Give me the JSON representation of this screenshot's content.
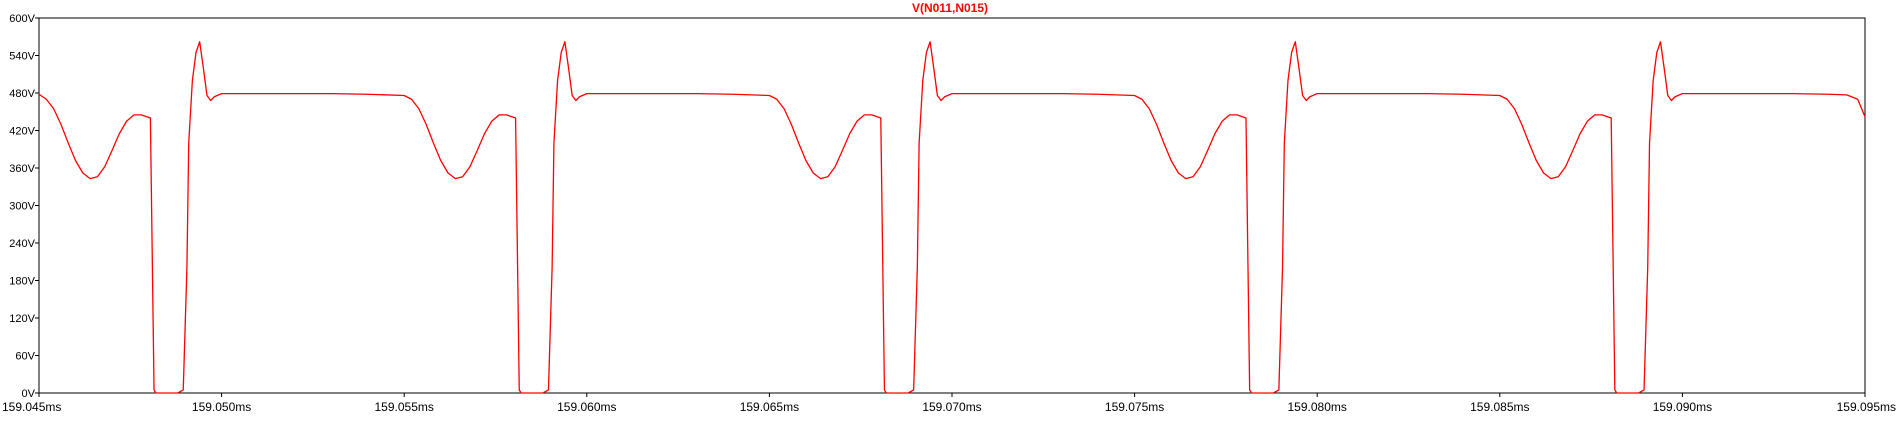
{
  "chart_data": {
    "type": "line",
    "title": "V(N011,N015)",
    "xlabel": "",
    "ylabel": "",
    "x_unit": "ms",
    "y_unit": "V",
    "xlim": [
      159.045,
      159.095
    ],
    "ylim": [
      0,
      600
    ],
    "x_ticks": [
      159.045,
      159.05,
      159.055,
      159.06,
      159.065,
      159.07,
      159.075,
      159.08,
      159.085,
      159.09,
      159.095
    ],
    "x_tick_labels": [
      "159.045ms",
      "159.050ms",
      "159.055ms",
      "159.060ms",
      "159.065ms",
      "159.070ms",
      "159.075ms",
      "159.080ms",
      "159.085ms",
      "159.090ms",
      "159.095ms"
    ],
    "y_ticks": [
      0,
      60,
      120,
      180,
      240,
      300,
      360,
      420,
      480,
      540,
      600
    ],
    "y_tick_labels": [
      "0V",
      "60V",
      "120V",
      "180V",
      "240V",
      "300V",
      "360V",
      "420V",
      "480V",
      "540V",
      "600V"
    ],
    "grid": false,
    "colors": {
      "series": "#ff0000",
      "title": "#ff0000",
      "axis": "#000000",
      "background": "#ffffff"
    },
    "series": [
      {
        "name": "V(N011,N015)",
        "x": [
          159.045,
          159.0452,
          159.0454,
          159.0456,
          159.0458,
          159.046,
          159.0462,
          159.0464,
          159.0466,
          159.0468,
          159.047,
          159.0472,
          159.0474,
          159.0476,
          159.0478,
          159.04805,
          159.04815,
          159.0482,
          159.0488,
          159.04895,
          159.04905,
          159.0491,
          159.0492,
          159.0493,
          159.0494,
          159.0495,
          159.0496,
          159.0497,
          159.0498,
          159.05,
          159.051,
          159.052,
          159.053,
          159.054,
          159.055,
          159.0552,
          159.0554,
          159.0556,
          159.0558,
          159.056,
          159.0562,
          159.0564,
          159.0566,
          159.0568,
          159.057,
          159.0572,
          159.0574,
          159.0576,
          159.0578,
          159.05805,
          159.05815,
          159.0582,
          159.0588,
          159.05895,
          159.05905,
          159.0591,
          159.0592,
          159.0593,
          159.0594,
          159.0595,
          159.0596,
          159.0597,
          159.0598,
          159.06,
          159.061,
          159.062,
          159.063,
          159.064,
          159.065,
          159.0652,
          159.0654,
          159.0656,
          159.0658,
          159.066,
          159.0662,
          159.0664,
          159.0666,
          159.0668,
          159.067,
          159.0672,
          159.0674,
          159.0676,
          159.0678,
          159.06805,
          159.06815,
          159.0682,
          159.0688,
          159.06895,
          159.06905,
          159.0691,
          159.0692,
          159.0693,
          159.0694,
          159.0695,
          159.0696,
          159.0697,
          159.0698,
          159.07,
          159.071,
          159.072,
          159.073,
          159.074,
          159.075,
          159.0752,
          159.0754,
          159.0756,
          159.0758,
          159.076,
          159.0762,
          159.0764,
          159.0766,
          159.0768,
          159.077,
          159.0772,
          159.0774,
          159.0776,
          159.0778,
          159.07805,
          159.07815,
          159.0782,
          159.0788,
          159.07895,
          159.07905,
          159.0791,
          159.0792,
          159.0793,
          159.0794,
          159.0795,
          159.0796,
          159.0797,
          159.0798,
          159.08,
          159.081,
          159.082,
          159.083,
          159.084,
          159.085,
          159.0852,
          159.0854,
          159.0856,
          159.0858,
          159.086,
          159.0862,
          159.0864,
          159.0866,
          159.0868,
          159.087,
          159.0872,
          159.0874,
          159.0876,
          159.0878,
          159.08805,
          159.08815,
          159.0882,
          159.0888,
          159.08895,
          159.08905,
          159.0891,
          159.0892,
          159.0893,
          159.0894,
          159.0895,
          159.0896,
          159.0897,
          159.0898,
          159.09,
          159.091,
          159.092,
          159.093,
          159.094,
          159.0945,
          159.0948,
          159.095
        ],
        "y": [
          478,
          470,
          455,
          430,
          400,
          372,
          352,
          343,
          346,
          362,
          388,
          415,
          435,
          445,
          445,
          440,
          5,
          0,
          0,
          5,
          200,
          400,
          500,
          545,
          562,
          520,
          476,
          468,
          474,
          479,
          479,
          479,
          479,
          478,
          476,
          470,
          455,
          430,
          400,
          372,
          352,
          343,
          346,
          362,
          388,
          415,
          435,
          445,
          445,
          440,
          5,
          0,
          0,
          5,
          200,
          400,
          500,
          545,
          562,
          520,
          476,
          468,
          474,
          479,
          479,
          479,
          479,
          478,
          476,
          470,
          455,
          430,
          400,
          372,
          352,
          343,
          346,
          362,
          388,
          415,
          435,
          445,
          445,
          440,
          5,
          0,
          0,
          5,
          200,
          400,
          500,
          545,
          562,
          520,
          476,
          468,
          474,
          479,
          479,
          479,
          479,
          478,
          476,
          470,
          455,
          430,
          400,
          372,
          352,
          343,
          346,
          362,
          388,
          415,
          435,
          445,
          445,
          440,
          5,
          0,
          0,
          5,
          200,
          400,
          500,
          545,
          562,
          520,
          476,
          468,
          474,
          479,
          479,
          479,
          479,
          478,
          476,
          470,
          455,
          430,
          400,
          372,
          352,
          343,
          346,
          362,
          388,
          415,
          435,
          445,
          445,
          440,
          5,
          0,
          0,
          5,
          200,
          400,
          500,
          545,
          562,
          520,
          476,
          468,
          474,
          479,
          479,
          479,
          479,
          478,
          477,
          470,
          442
        ]
      }
    ]
  }
}
